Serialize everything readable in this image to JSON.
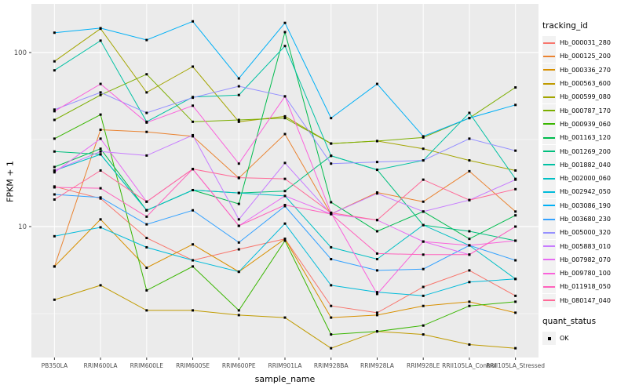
{
  "chart_data": {
    "type": "line",
    "title": "",
    "legend_title": "tracking_id",
    "legend_position": "right",
    "grid": "on",
    "panel_bg": "#EBEBEB",
    "grid_color": "#FFFFFF",
    "tick_color": "#333333",
    "tick_label_color": "#4D4D4D",
    "point_color": "#000000",
    "point_shape": "square",
    "x_axis": {
      "label": "sample_name",
      "categories": [
        "PB350LA",
        "RRIM600LA",
        "RRIM600LE",
        "RRIM600SE",
        "RRIM600PE",
        "RRIM901LA",
        "RRIM928BA",
        "RRIM928LA",
        "RRIM928LE",
        "RRII105LA_Control",
        "RRII105LA_Stressed"
      ]
    },
    "y_axis": {
      "label": "FPKM + 1",
      "scale": "log10",
      "ticks": [
        10,
        100
      ],
      "range": [
        1.8,
        180
      ]
    },
    "series": [
      {
        "name": "Hb_000031_280",
        "color": "#F8766D",
        "values": [
          17,
          14.5,
          8.6,
          6.4,
          7.4,
          8.5,
          3.5,
          3.2,
          4.5,
          5.6,
          4.0
        ]
      },
      {
        "name": "Hb_000125_200",
        "color": "#EA8331",
        "values": [
          5.9,
          36,
          35,
          33,
          19,
          34,
          11.8,
          15.7,
          13.9,
          20.8,
          12.2
        ]
      },
      {
        "name": "Hb_000336_270",
        "color": "#D89000",
        "values": [
          5.9,
          11,
          5.8,
          7.9,
          5.5,
          8.5,
          3.0,
          3.1,
          3.5,
          3.7,
          3.2
        ]
      },
      {
        "name": "Hb_000563_600",
        "color": "#C09B00",
        "values": [
          3.8,
          4.6,
          3.3,
          3.3,
          3.1,
          3.0,
          2.0,
          2.5,
          2.4,
          2.1,
          2.0
        ]
      },
      {
        "name": "Hb_000599_080",
        "color": "#A3A500",
        "values": [
          89,
          137,
          59,
          83,
          40,
          43,
          30,
          31,
          28,
          24,
          21
        ]
      },
      {
        "name": "Hb_000787_170",
        "color": "#7CAE00",
        "values": [
          41,
          57,
          75,
          40,
          41,
          42,
          30,
          31,
          32.5,
          42,
          63
        ]
      },
      {
        "name": "Hb_000939_060",
        "color": "#39B600",
        "values": [
          32,
          44,
          4.3,
          5.9,
          3.3,
          8.3,
          2.4,
          2.5,
          2.7,
          3.5,
          3.7
        ]
      },
      {
        "name": "Hb_001163_120",
        "color": "#00BB4E",
        "values": [
          22,
          28,
          12.4,
          16.2,
          13.5,
          131,
          13.8,
          9.4,
          12.2,
          8.5,
          11.6
        ]
      },
      {
        "name": "Hb_001269_200",
        "color": "#00BF7D",
        "values": [
          27,
          26,
          12.4,
          16.2,
          15.6,
          16,
          25.5,
          21.2,
          10.2,
          9.4,
          8.3
        ]
      },
      {
        "name": "Hb_001882_040",
        "color": "#00C1A3",
        "values": [
          79,
          117,
          40,
          55.5,
          57,
          109,
          25.5,
          21.2,
          24,
          45,
          18.8
        ]
      },
      {
        "name": "Hb_002000_060",
        "color": "#00BFC4",
        "values": [
          21,
          26,
          12.4,
          16.2,
          15.6,
          15,
          7.6,
          6.5,
          10.2,
          7.8,
          5.0
        ]
      },
      {
        "name": "Hb_002942_050",
        "color": "#00BBDA",
        "values": [
          8.8,
          9.9,
          7.6,
          6.4,
          5.5,
          10.4,
          4.6,
          4.2,
          4.0,
          4.8,
          5.0
        ]
      },
      {
        "name": "Hb_003086_190",
        "color": "#00B0F6",
        "values": [
          130,
          138,
          118,
          151,
          71,
          148,
          42,
          66,
          33,
          42,
          50
        ]
      },
      {
        "name": "Hb_003680_230",
        "color": "#35A2FF",
        "values": [
          15.3,
          14.7,
          10.3,
          12.4,
          8.1,
          13.1,
          6.5,
          5.6,
          5.7,
          7.8,
          6.4
        ]
      },
      {
        "name": "Hb_005000_320",
        "color": "#9590FF",
        "values": [
          47,
          59,
          45,
          55,
          64,
          56,
          23,
          23.5,
          24,
          32,
          27.3
        ]
      },
      {
        "name": "Hb_005883_010",
        "color": "#C77CFF",
        "values": [
          21,
          27,
          25.6,
          33.5,
          11,
          23.2,
          11.8,
          15.5,
          12.2,
          14.2,
          18.6
        ]
      },
      {
        "name": "Hb_007982_070",
        "color": "#E76BF3",
        "values": [
          20.5,
          32,
          13.9,
          21.4,
          10.1,
          15,
          11.8,
          10.9,
          8.2,
          6.9,
          10.0
        ]
      },
      {
        "name": "Hb_009780_100",
        "color": "#FA62DB",
        "values": [
          46,
          66,
          39.6,
          49.5,
          23,
          56,
          12,
          4.1,
          8.2,
          7.8,
          8.3
        ]
      },
      {
        "name": "Hb_011918_050",
        "color": "#FF62BC",
        "values": [
          16.8,
          16.6,
          11.4,
          21.4,
          10.1,
          13.3,
          11.8,
          7.0,
          6.9,
          6.9,
          10.0
        ]
      },
      {
        "name": "Hb_080147_040",
        "color": "#FF6A98",
        "values": [
          14.3,
          21,
          13.9,
          21.4,
          19.1,
          18.8,
          12,
          10.9,
          18.6,
          14.2,
          16.4
        ]
      }
    ],
    "quant_legend": {
      "title": "quant_status",
      "label": "OK"
    }
  }
}
